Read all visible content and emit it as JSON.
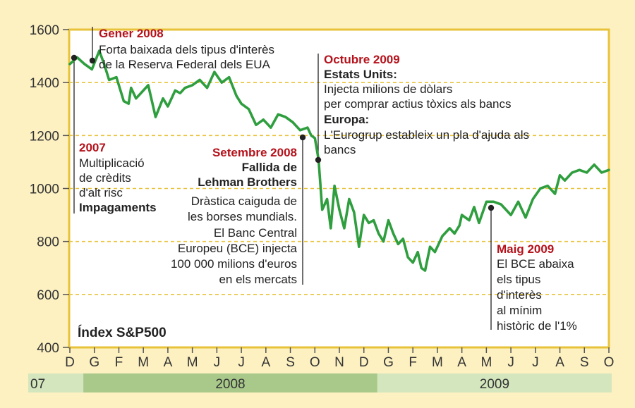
{
  "chart_data": {
    "type": "line",
    "title": "Índex S&P500",
    "ylim": [
      400,
      1600
    ],
    "yticks": [
      "1600",
      "1400",
      "1200",
      "1000",
      "800",
      "600",
      "400"
    ],
    "months": [
      "D",
      "G",
      "F",
      "M",
      "A",
      "M",
      "J",
      "J",
      "A",
      "S",
      "O",
      "N",
      "D",
      "G",
      "F",
      "M",
      "A",
      "M",
      "J",
      "J",
      "A",
      "S",
      "O"
    ],
    "years": [
      "07",
      "2008",
      "2009"
    ],
    "grid": true,
    "series": [
      {
        "color": "#2e9e3e",
        "x": [
          0,
          0.3,
          0.6,
          0.9,
          1.2,
          1.4,
          1.6,
          1.9,
          2.2,
          2.4,
          2.5,
          2.7,
          3.0,
          3.2,
          3.5,
          3.8,
          4.0,
          4.3,
          4.5,
          4.7,
          5.0,
          5.3,
          5.6,
          5.9,
          6.2,
          6.5,
          6.8,
          7.0,
          7.3,
          7.6,
          7.9,
          8.2,
          8.5,
          8.8,
          9.1,
          9.4,
          9.7,
          9.85,
          10.0,
          10.15,
          10.3,
          10.5,
          10.65,
          10.8,
          11.0,
          11.2,
          11.4,
          11.6,
          11.8,
          12.0,
          12.2,
          12.4,
          12.6,
          12.8,
          13.0,
          13.2,
          13.4,
          13.6,
          13.8,
          14.0,
          14.2,
          14.35,
          14.5,
          14.7,
          14.9,
          15.2,
          15.5,
          15.7,
          15.9,
          16.0,
          16.3,
          16.5,
          16.7,
          17.0,
          17.3,
          17.6,
          18.0,
          18.3,
          18.6,
          18.9,
          19.2,
          19.5,
          19.8,
          20.0,
          20.2,
          20.5,
          20.8,
          21.1,
          21.4,
          21.7,
          22.0
        ],
        "y": [
          1470,
          1495,
          1470,
          1450,
          1520,
          1470,
          1410,
          1420,
          1330,
          1320,
          1380,
          1340,
          1370,
          1390,
          1270,
          1340,
          1310,
          1370,
          1360,
          1380,
          1390,
          1410,
          1380,
          1440,
          1400,
          1420,
          1350,
          1320,
          1300,
          1240,
          1260,
          1230,
          1280,
          1270,
          1250,
          1220,
          1230,
          1200,
          1190,
          1110,
          920,
          960,
          850,
          1010,
          920,
          850,
          960,
          910,
          780,
          900,
          870,
          880,
          830,
          800,
          880,
          830,
          790,
          810,
          740,
          720,
          760,
          700,
          690,
          780,
          760,
          820,
          850,
          830,
          860,
          900,
          880,
          930,
          870,
          950,
          950,
          940,
          900,
          950,
          890,
          960,
          1000,
          1010,
          980,
          1050,
          1030,
          1060,
          1070,
          1060,
          1090,
          1060,
          1070
        ]
      }
    ],
    "annotations": [
      {
        "red": "2007",
        "lines": [
          "Multiplicació",
          "de crèdits",
          "d'alt risc"
        ],
        "bold": [
          "Impagaments"
        ]
      },
      {
        "red": "Gener 2008",
        "lines": [
          "Forta baixada dels tipus d'interès",
          "de la Reserva Federal dels EUA"
        ]
      },
      {
        "red": "Setembre 2008",
        "bold": [
          "Fallida de",
          "Lehman Brothers"
        ],
        "lines": [
          "Dràstica caiguda de",
          "les borses mundials.",
          "El Banc Central",
          "Europeu (BCE) injecta",
          "100 000 milions d'euros",
          "en els mercats"
        ]
      },
      {
        "red": "Octubre 2009",
        "sections": [
          {
            "bold": "Estats Units:",
            "lines": [
              "Injecta milions de dòlars",
              "per comprar actius tòxics als bancs"
            ]
          },
          {
            "bold": "Europa:",
            "lines": [
              "L'Eurogrup estableix un pla d'ajuda als",
              "bancs"
            ]
          }
        ]
      },
      {
        "red": "Maig 2009",
        "lines": [
          "El BCE abaixa",
          "els tipus",
          "d'interès",
          "al mínim",
          "històric de l'1%"
        ]
      }
    ],
    "colors": {
      "background": "#fdf1c2",
      "plot": "#ffffff",
      "frame": "#e8c33a",
      "grid": "#e8c33a",
      "line": "#2e9e3e",
      "accent_red": "#b5121b",
      "year_dark": "#a8c98a",
      "year_light": "#d4e6bd"
    }
  }
}
